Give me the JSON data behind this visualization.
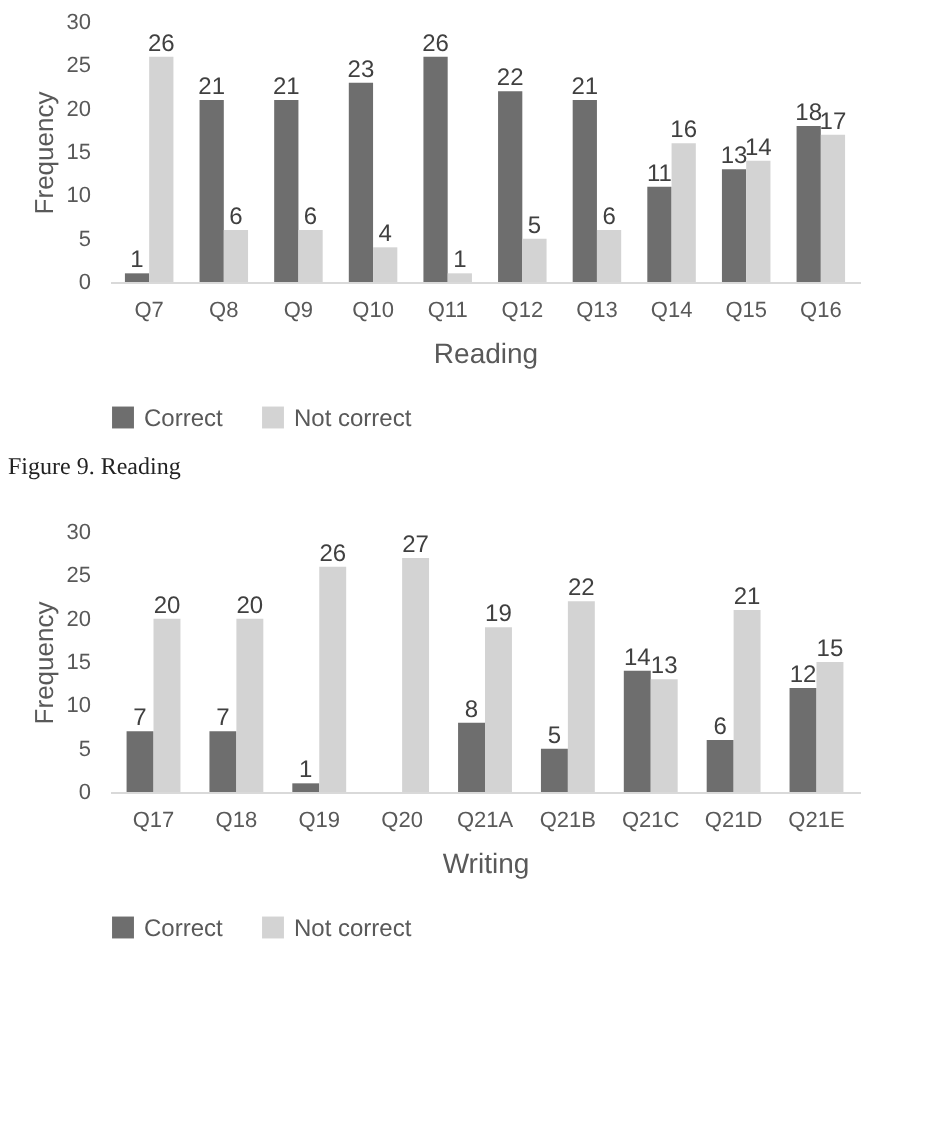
{
  "chart_data": [
    {
      "type": "bar",
      "xlabel": "Reading",
      "ylabel": "Frequency",
      "categories": [
        "Q7",
        "Q8",
        "Q9",
        "Q10",
        "Q11",
        "Q12",
        "Q13",
        "Q14",
        "Q15",
        "Q16"
      ],
      "series": [
        {
          "name": "Correct",
          "color": "#6e6e6e",
          "values": [
            1,
            21,
            21,
            23,
            26,
            22,
            21,
            11,
            13,
            18
          ]
        },
        {
          "name": "Not correct",
          "color": "#d3d3d3",
          "values": [
            26,
            6,
            6,
            4,
            1,
            5,
            6,
            16,
            14,
            17
          ]
        }
      ],
      "ylim": [
        0,
        30
      ],
      "yticks": [
        0,
        5,
        10,
        15,
        20,
        25,
        30
      ],
      "data_labels": true,
      "legend": "bottom",
      "annotations": [
        "Figure 9. Reading"
      ]
    },
    {
      "type": "bar",
      "xlabel": "Writing",
      "ylabel": "Frequency",
      "categories": [
        "Q17",
        "Q18",
        "Q19",
        "Q20",
        "Q21A",
        "Q21B",
        "Q21C",
        "Q21D",
        "Q21E"
      ],
      "series": [
        {
          "name": "Correct",
          "color": "#6e6e6e",
          "values": [
            7,
            7,
            1,
            null,
            8,
            5,
            14,
            6,
            12
          ]
        },
        {
          "name": "Not correct",
          "color": "#d3d3d3",
          "values": [
            20,
            20,
            26,
            27,
            19,
            22,
            13,
            21,
            15
          ]
        }
      ],
      "ylim": [
        0,
        30
      ],
      "yticks": [
        0,
        5,
        10,
        15,
        20,
        25,
        30
      ],
      "data_labels": true,
      "legend": "bottom"
    }
  ]
}
